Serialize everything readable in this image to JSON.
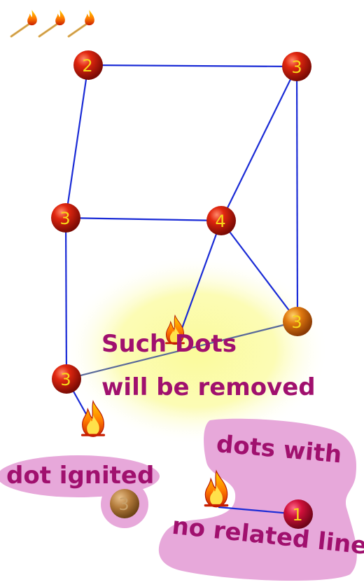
{
  "game": {
    "matches_remaining": 3,
    "icons": {
      "match": "match-stick-icon",
      "flame": "flame-icon"
    },
    "colors": {
      "line": "#1a2bd6",
      "dot_red": "#c8140a",
      "dot_orange": "#d9680a",
      "dot_dim": "#b07a3a",
      "number": "#f6d81a",
      "callout_text": "#a0106e",
      "callout_bubble": "#e7a8da",
      "highlight": "#fbfb9a"
    },
    "dots": [
      {
        "id": "top-left",
        "label": "2",
        "style": "red"
      },
      {
        "id": "top-right",
        "label": "3",
        "style": "red"
      },
      {
        "id": "mid-left",
        "label": "3",
        "style": "red"
      },
      {
        "id": "center",
        "label": "4",
        "style": "red"
      },
      {
        "id": "right-lower",
        "label": "3",
        "style": "orange"
      },
      {
        "id": "bottom-left",
        "label": "3",
        "style": "red"
      },
      {
        "id": "ignited-dot",
        "label": "3",
        "style": "dim"
      },
      {
        "id": "lonely-dot",
        "label": "1",
        "style": "crimson"
      }
    ]
  },
  "callouts": {
    "removed_line1": "Such Dots",
    "removed_line2": "will be removed",
    "ignited": "dot ignited",
    "no_line_1": "dots with",
    "no_line_2": "no related line"
  }
}
